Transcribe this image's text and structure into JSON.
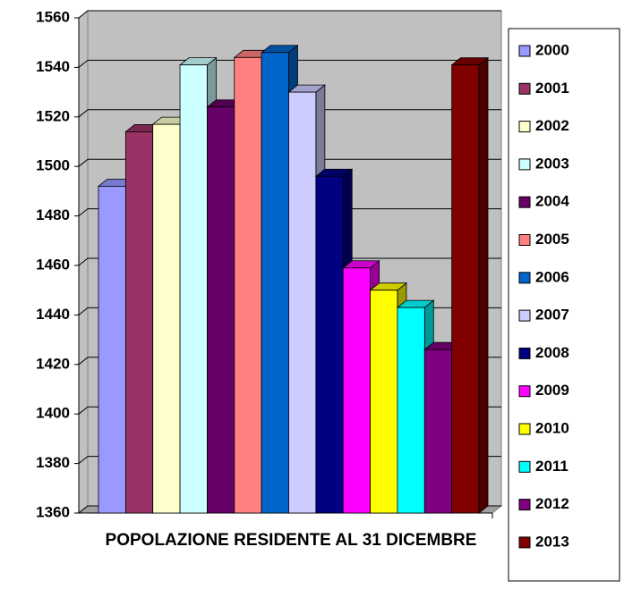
{
  "chart_data": {
    "type": "bar",
    "categories": [
      "POPOLAZIONE RESIDENTE AL 31 DICEMBRE"
    ],
    "series": [
      {
        "name": "2000",
        "color": "#9999ff",
        "values": [
          1492
        ]
      },
      {
        "name": "2001",
        "color": "#993366",
        "values": [
          1514
        ]
      },
      {
        "name": "2002",
        "color": "#ffffcc",
        "values": [
          1517
        ]
      },
      {
        "name": "2003",
        "color": "#ccffff",
        "values": [
          1541
        ]
      },
      {
        "name": "2004",
        "color": "#660066",
        "values": [
          1524
        ]
      },
      {
        "name": "2005",
        "color": "#ff8080",
        "values": [
          1544
        ]
      },
      {
        "name": "2006",
        "color": "#0066cc",
        "values": [
          1546
        ]
      },
      {
        "name": "2007",
        "color": "#ccccff",
        "values": [
          1530
        ]
      },
      {
        "name": "2008",
        "color": "#000080",
        "values": [
          1496
        ]
      },
      {
        "name": "2009",
        "color": "#ff00ff",
        "values": [
          1459
        ]
      },
      {
        "name": "2010",
        "color": "#ffff00",
        "values": [
          1450
        ]
      },
      {
        "name": "2011",
        "color": "#00ffff",
        "values": [
          1443
        ]
      },
      {
        "name": "2012",
        "color": "#800080",
        "values": [
          1426
        ]
      },
      {
        "name": "2013",
        "color": "#800000",
        "values": [
          1541
        ]
      }
    ],
    "ylim": [
      1360,
      1560
    ],
    "yticks": [
      1360,
      1380,
      1400,
      1420,
      1440,
      1460,
      1480,
      1500,
      1520,
      1540,
      1560
    ],
    "grid": true,
    "legend": "right"
  }
}
